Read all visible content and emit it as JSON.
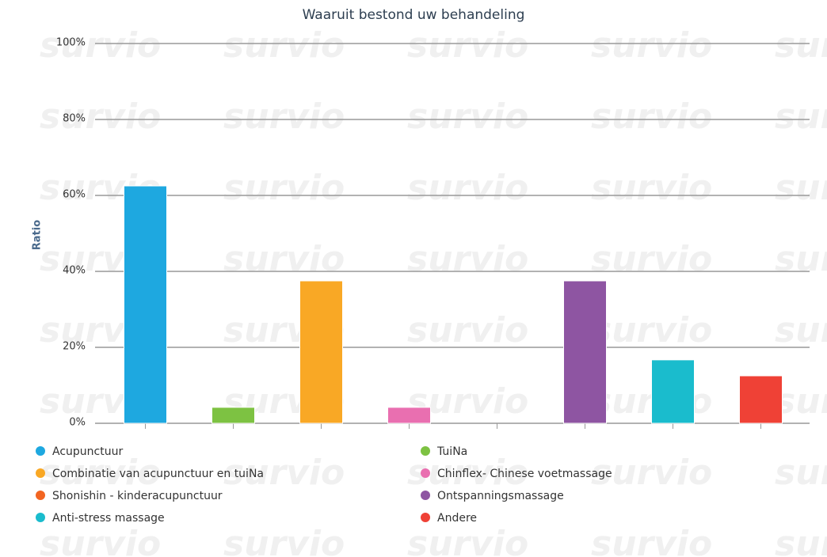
{
  "chart_data": {
    "type": "bar",
    "title": "Waaruit bestond uw behandeling",
    "ylabel": "Ratio",
    "watermark": "survio",
    "categories": [
      "Acupunctuur",
      "TuiNa",
      "Combinatie van acupunctuur en tuiNa",
      "Chinflex- Chinese voetmassage",
      "Shonishin - kinderacupunctuur",
      "Ontspanningsmassage",
      "Anti-stress massage",
      "Andere"
    ],
    "values": [
      62.5,
      4.2,
      37.5,
      4.2,
      0,
      37.5,
      16.7,
      12.5
    ],
    "colors": [
      "#1ea8e0",
      "#7dc242",
      "#f9a825",
      "#e96fb0",
      "#f26522",
      "#8e55a2",
      "#1abccd",
      "#ef4136"
    ],
    "ylim": [
      0,
      100
    ],
    "yticks": [
      {
        "value": 0,
        "label": "0%"
      },
      {
        "value": 20,
        "label": "20%"
      },
      {
        "value": 40,
        "label": "40%"
      },
      {
        "value": 60,
        "label": "60%"
      },
      {
        "value": 80,
        "label": "80%"
      },
      {
        "value": 100,
        "label": "100%"
      }
    ],
    "grid": true
  }
}
